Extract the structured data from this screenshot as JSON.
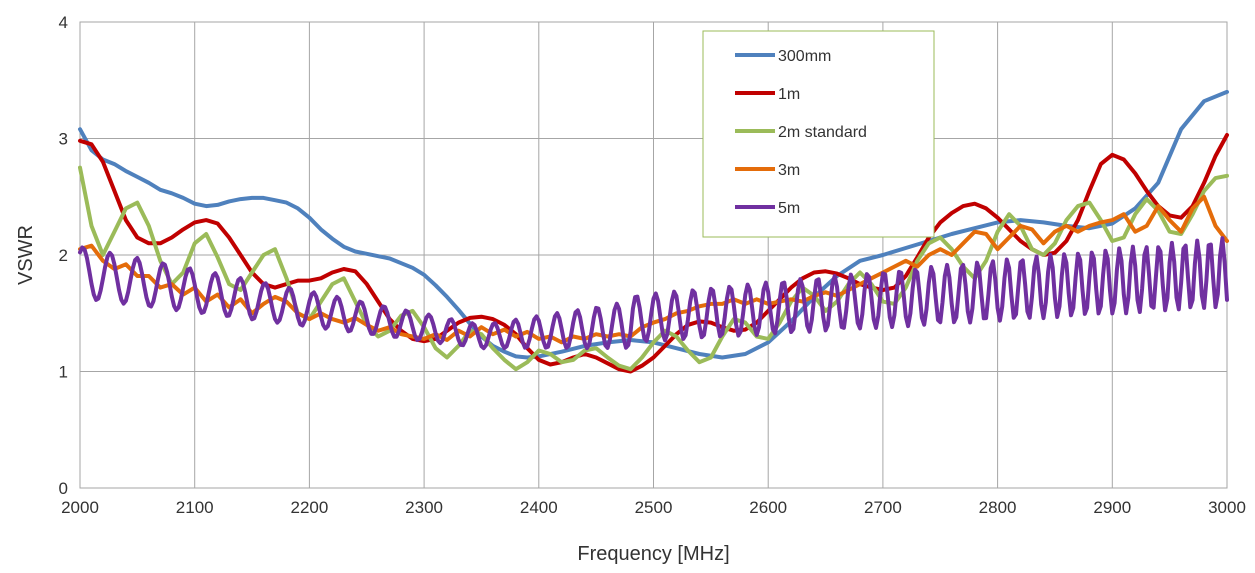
{
  "chart_data": {
    "type": "line",
    "title": "",
    "xlabel": "Frequency [MHz]",
    "ylabel": "VSWR",
    "xlim": [
      2000,
      3000
    ],
    "ylim": [
      0,
      4
    ],
    "x_ticks": [
      2000,
      2100,
      2200,
      2300,
      2400,
      2500,
      2600,
      2700,
      2800,
      2900,
      3000
    ],
    "y_ticks": [
      0,
      1,
      2,
      3,
      4
    ],
    "grid": true,
    "legend_position": "top-center",
    "series": [
      {
        "name": "300mm",
        "color": "#4f81bd",
        "x": [
          2000,
          2010,
          2020,
          2030,
          2040,
          2050,
          2060,
          2070,
          2080,
          2090,
          2100,
          2110,
          2120,
          2130,
          2140,
          2150,
          2160,
          2170,
          2180,
          2190,
          2200,
          2210,
          2220,
          2230,
          2240,
          2250,
          2260,
          2270,
          2280,
          2290,
          2300,
          2310,
          2320,
          2330,
          2340,
          2350,
          2360,
          2370,
          2380,
          2390,
          2400,
          2420,
          2440,
          2460,
          2480,
          2500,
          2520,
          2540,
          2560,
          2580,
          2600,
          2620,
          2640,
          2660,
          2680,
          2700,
          2720,
          2740,
          2760,
          2780,
          2800,
          2820,
          2840,
          2860,
          2880,
          2900,
          2920,
          2940,
          2960,
          2980,
          3000
        ],
        "y": [
          3.08,
          2.9,
          2.82,
          2.78,
          2.72,
          2.67,
          2.62,
          2.56,
          2.53,
          2.49,
          2.44,
          2.42,
          2.43,
          2.46,
          2.48,
          2.49,
          2.49,
          2.47,
          2.45,
          2.4,
          2.32,
          2.22,
          2.14,
          2.07,
          2.03,
          2.01,
          1.99,
          1.97,
          1.93,
          1.89,
          1.83,
          1.74,
          1.64,
          1.53,
          1.41,
          1.3,
          1.22,
          1.17,
          1.13,
          1.12,
          1.13,
          1.17,
          1.22,
          1.25,
          1.27,
          1.25,
          1.2,
          1.15,
          1.12,
          1.15,
          1.25,
          1.43,
          1.64,
          1.82,
          1.95,
          2.0,
          2.06,
          2.12,
          2.18,
          2.23,
          2.28,
          2.3,
          2.28,
          2.25,
          2.23,
          2.27,
          2.4,
          2.62,
          3.08,
          3.32,
          3.4
        ]
      },
      {
        "name": "1m",
        "color": "#c00000",
        "x": [
          2000,
          2010,
          2020,
          2030,
          2040,
          2050,
          2060,
          2070,
          2080,
          2090,
          2100,
          2110,
          2120,
          2130,
          2140,
          2150,
          2160,
          2170,
          2180,
          2190,
          2200,
          2210,
          2220,
          2230,
          2240,
          2250,
          2260,
          2270,
          2280,
          2290,
          2300,
          2310,
          2320,
          2330,
          2340,
          2350,
          2360,
          2370,
          2380,
          2390,
          2400,
          2410,
          2420,
          2430,
          2440,
          2450,
          2460,
          2470,
          2480,
          2490,
          2500,
          2510,
          2520,
          2530,
          2540,
          2550,
          2560,
          2570,
          2580,
          2590,
          2600,
          2610,
          2620,
          2630,
          2640,
          2650,
          2660,
          2670,
          2680,
          2690,
          2700,
          2710,
          2720,
          2730,
          2740,
          2750,
          2760,
          2770,
          2780,
          2790,
          2800,
          2810,
          2820,
          2830,
          2840,
          2850,
          2860,
          2870,
          2880,
          2890,
          2900,
          2910,
          2920,
          2930,
          2940,
          2950,
          2960,
          2970,
          2980,
          2990,
          3000
        ],
        "y": [
          2.98,
          2.95,
          2.8,
          2.55,
          2.3,
          2.15,
          2.1,
          2.1,
          2.15,
          2.22,
          2.28,
          2.3,
          2.27,
          2.15,
          2.0,
          1.85,
          1.75,
          1.72,
          1.75,
          1.78,
          1.78,
          1.8,
          1.85,
          1.88,
          1.86,
          1.75,
          1.6,
          1.45,
          1.35,
          1.28,
          1.26,
          1.28,
          1.35,
          1.42,
          1.46,
          1.47,
          1.45,
          1.4,
          1.32,
          1.2,
          1.1,
          1.06,
          1.08,
          1.12,
          1.15,
          1.12,
          1.07,
          1.02,
          1.0,
          1.05,
          1.12,
          1.22,
          1.32,
          1.4,
          1.43,
          1.42,
          1.38,
          1.35,
          1.36,
          1.42,
          1.52,
          1.62,
          1.72,
          1.8,
          1.85,
          1.86,
          1.84,
          1.8,
          1.75,
          1.72,
          1.7,
          1.72,
          1.82,
          1.98,
          2.15,
          2.28,
          2.36,
          2.42,
          2.44,
          2.4,
          2.32,
          2.22,
          2.12,
          2.05,
          2.0,
          2.02,
          2.12,
          2.3,
          2.55,
          2.78,
          2.86,
          2.82,
          2.7,
          2.55,
          2.42,
          2.34,
          2.32,
          2.42,
          2.62,
          2.85,
          3.03
        ]
      },
      {
        "name": "2m standard",
        "color": "#9bbb59",
        "x": [
          2000,
          2010,
          2020,
          2030,
          2040,
          2050,
          2060,
          2070,
          2080,
          2090,
          2100,
          2110,
          2120,
          2130,
          2140,
          2150,
          2160,
          2170,
          2180,
          2190,
          2200,
          2210,
          2220,
          2230,
          2240,
          2250,
          2260,
          2270,
          2280,
          2290,
          2300,
          2310,
          2320,
          2330,
          2340,
          2350,
          2360,
          2370,
          2380,
          2390,
          2400,
          2410,
          2420,
          2430,
          2440,
          2450,
          2460,
          2470,
          2480,
          2490,
          2500,
          2510,
          2520,
          2530,
          2540,
          2550,
          2560,
          2570,
          2580,
          2590,
          2600,
          2610,
          2620,
          2630,
          2640,
          2650,
          2660,
          2670,
          2680,
          2690,
          2700,
          2710,
          2720,
          2730,
          2740,
          2750,
          2760,
          2770,
          2780,
          2790,
          2800,
          2810,
          2820,
          2830,
          2840,
          2850,
          2860,
          2870,
          2880,
          2890,
          2900,
          2910,
          2920,
          2930,
          2940,
          2950,
          2960,
          2970,
          2980,
          2990,
          3000
        ],
        "y": [
          2.75,
          2.25,
          2.0,
          2.2,
          2.4,
          2.45,
          2.25,
          1.95,
          1.75,
          1.85,
          2.1,
          2.18,
          1.98,
          1.75,
          1.7,
          1.85,
          2.0,
          2.05,
          1.8,
          1.5,
          1.45,
          1.6,
          1.75,
          1.8,
          1.6,
          1.4,
          1.3,
          1.35,
          1.48,
          1.52,
          1.38,
          1.2,
          1.12,
          1.22,
          1.35,
          1.32,
          1.2,
          1.1,
          1.02,
          1.08,
          1.18,
          1.15,
          1.08,
          1.1,
          1.18,
          1.2,
          1.12,
          1.05,
          1.02,
          1.12,
          1.25,
          1.35,
          1.3,
          1.18,
          1.08,
          1.12,
          1.3,
          1.45,
          1.42,
          1.3,
          1.28,
          1.42,
          1.6,
          1.72,
          1.65,
          1.52,
          1.6,
          1.75,
          1.85,
          1.75,
          1.6,
          1.58,
          1.72,
          1.95,
          2.1,
          2.15,
          2.05,
          1.9,
          1.8,
          1.95,
          2.2,
          2.35,
          2.25,
          2.05,
          2.0,
          2.1,
          2.3,
          2.42,
          2.45,
          2.3,
          2.12,
          2.15,
          2.35,
          2.48,
          2.38,
          2.2,
          2.18,
          2.35,
          2.55,
          2.66,
          2.68
        ]
      },
      {
        "name": "3m",
        "color": "#e46c0a",
        "x": [
          2000,
          2010,
          2020,
          2030,
          2040,
          2050,
          2060,
          2070,
          2080,
          2090,
          2100,
          2110,
          2120,
          2130,
          2140,
          2150,
          2160,
          2170,
          2180,
          2190,
          2200,
          2210,
          2220,
          2230,
          2240,
          2250,
          2260,
          2270,
          2280,
          2290,
          2300,
          2310,
          2320,
          2330,
          2340,
          2350,
          2360,
          2370,
          2380,
          2390,
          2400,
          2410,
          2420,
          2430,
          2440,
          2450,
          2460,
          2470,
          2480,
          2490,
          2500,
          2510,
          2520,
          2530,
          2540,
          2550,
          2560,
          2570,
          2580,
          2590,
          2600,
          2610,
          2620,
          2630,
          2640,
          2650,
          2660,
          2670,
          2680,
          2690,
          2700,
          2710,
          2720,
          2730,
          2740,
          2750,
          2760,
          2770,
          2780,
          2790,
          2800,
          2810,
          2820,
          2830,
          2840,
          2850,
          2860,
          2870,
          2880,
          2890,
          2900,
          2910,
          2920,
          2930,
          2940,
          2950,
          2960,
          2970,
          2980,
          2990,
          3000
        ],
        "y": [
          2.05,
          2.08,
          1.95,
          1.88,
          1.92,
          1.82,
          1.82,
          1.72,
          1.75,
          1.66,
          1.72,
          1.6,
          1.66,
          1.55,
          1.62,
          1.5,
          1.58,
          1.64,
          1.6,
          1.5,
          1.45,
          1.5,
          1.45,
          1.42,
          1.46,
          1.4,
          1.35,
          1.38,
          1.32,
          1.3,
          1.28,
          1.32,
          1.27,
          1.35,
          1.3,
          1.38,
          1.32,
          1.36,
          1.3,
          1.34,
          1.28,
          1.3,
          1.25,
          1.3,
          1.28,
          1.32,
          1.3,
          1.32,
          1.3,
          1.38,
          1.42,
          1.45,
          1.5,
          1.52,
          1.56,
          1.58,
          1.58,
          1.62,
          1.58,
          1.62,
          1.58,
          1.6,
          1.62,
          1.6,
          1.65,
          1.68,
          1.65,
          1.7,
          1.75,
          1.8,
          1.85,
          1.9,
          1.95,
          1.9,
          2.0,
          2.05,
          2.0,
          2.1,
          2.2,
          2.18,
          2.05,
          2.15,
          2.25,
          2.22,
          2.1,
          2.2,
          2.25,
          2.2,
          2.25,
          2.28,
          2.3,
          2.35,
          2.2,
          2.25,
          2.42,
          2.3,
          2.2,
          2.4,
          2.5,
          2.25,
          2.12
        ]
      },
      {
        "name": "5m",
        "color": "#7030a0",
        "x": [],
        "y": []
      }
    ]
  }
}
